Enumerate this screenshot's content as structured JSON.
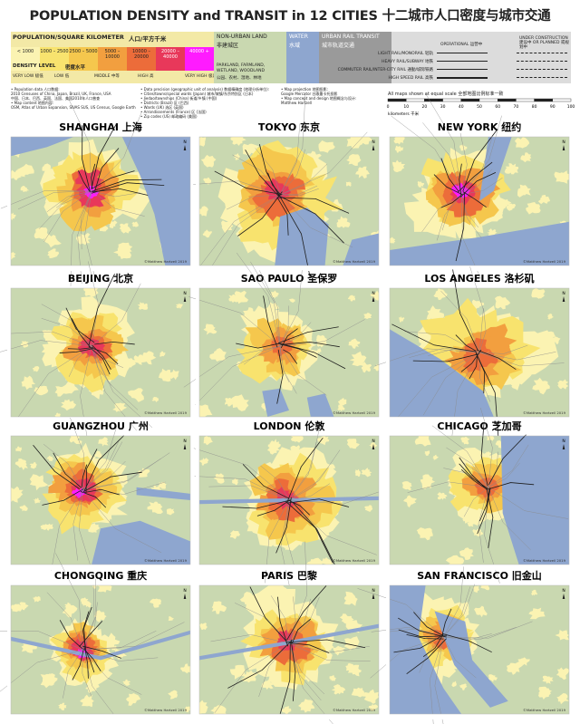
{
  "title": "POPULATION DENSITY and TRANSIT in 12 CITIES",
  "title_zh": "十二城市人口密度与城市交通",
  "legend": {
    "population": {
      "heading": "POPULATION/SQUARE KILOMETER",
      "heading_zh": "人口/平方千米",
      "bins": [
        {
          "label": "< 1000",
          "color": "#fbf3b2"
        },
        {
          "label": "1000 – 2500",
          "color": "#f8e36e"
        },
        {
          "label": "2500 – 5000",
          "color": "#f5c74d"
        },
        {
          "label": "5000 – 10000",
          "color": "#f29f3f"
        },
        {
          "label": "10000 – 20000",
          "color": "#ec6c3a"
        },
        {
          "label": "20000 – 40000",
          "color": "#e8385a"
        },
        {
          "label": "40000 +",
          "color": "#ff1bff"
        }
      ],
      "level_heading": "DENSITY LEVEL",
      "level_heading_zh": "密度水平",
      "levels": [
        "VERY LOW 极低",
        "LOW 低",
        "MIDDLE 中等",
        "HIGH 高",
        "VERY HIGH 极高"
      ]
    },
    "non_urban": {
      "heading": "NON-URBAN LAND",
      "heading_zh": "非建城区",
      "detail": "PARKLAND, FARMLAND, WETLAND, WOODLAND",
      "detail_zh": "公园、农村、湿地、林地",
      "color": "#c9d8b0"
    },
    "water": {
      "heading": "WATER",
      "heading_zh": "水域",
      "color": "#8ea6cf"
    },
    "rail": {
      "heading": "URBAN RAIL TRANSIT",
      "heading_zh": "城市轨道交通",
      "color": "#9a9a9a",
      "operational": "OPERATIONAL 运营中",
      "planned": "UNDER CONSTRUCTION 建设中 OR PLANNED 或规划中",
      "types": [
        "LIGHT RAIL/MONORAIL 轻轨",
        "HEAVY RAIL/SUBWAY 地铁",
        "COMMUTER RAIL/INTER-CITY RAIL 通勤/城际铁路",
        "HIGH SPEED RAIL 高铁"
      ]
    }
  },
  "notes": [
    [
      "• Population data 人口数据:",
      "2010 Censuses of China, Japan, Brazil, UK, France, USA",
      "中国、日本、巴西、英国、法国、美国2010年人口普查",
      "• Map content 地图内容:",
      "OSM, Atlas of Urban Expansion, SIVAS SUS, US Census, Google Earth"
    ],
    [
      "• Data precision (geographic unit of analysis) 数据精确度 (地理分析单位):",
      "• Cities/towns/special wards (Japan) 城市/城镇/东京特别区 (日本)",
      "• Jiedao/townships (China) 街道/乡镇 (中国)",
      "• Districts (Brazil) 区 (巴西)",
      "• Wards (UK) 选区 (英国)",
      "• Arrondissements (France) 区 (法国)",
      "• Zip codes (US) 邮政编码 (美国)"
    ],
    [
      "• Map projection 地图投影:",
      "Google Mercator 谷歌墨卡托投影",
      "• Map concept and design 地图概念与设计:",
      "Matthew Hartzell"
    ]
  ],
  "scale": {
    "caption": "All maps shown at equal scale 全部地图比例标准一致",
    "ticks": [
      0,
      10,
      20,
      30,
      40,
      50,
      60,
      70,
      80,
      90,
      100
    ],
    "unit": "kilometers 千米"
  },
  "cities": [
    "SHANGHAI 上海",
    "TOKYO 东京",
    "NEW YORK 纽约",
    "BEIJING 北京",
    "SAO PAULO 圣保罗",
    "LOS ANGELES 洛杉矶",
    "GUANGZHOU 广州",
    "LONDON 伦敦",
    "CHICAGO 芝加哥",
    "CHONGQING 重庆",
    "PARIS 巴黎",
    "SAN FRANCISCO 旧金山"
  ],
  "credit": "©Matthew Hartzell 2019",
  "north": "N"
}
